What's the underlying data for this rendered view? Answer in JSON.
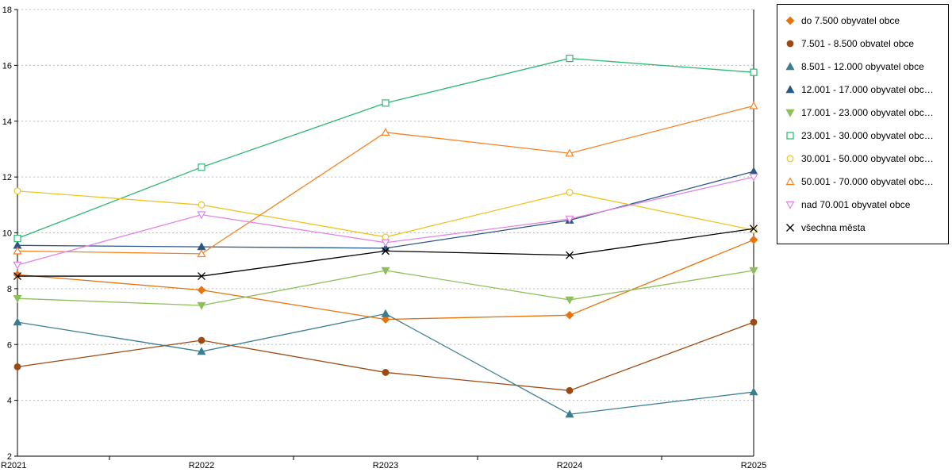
{
  "chart_data": {
    "type": "line",
    "title": "",
    "xlabel": "",
    "ylabel": "",
    "categories": [
      "R2021",
      "R2022",
      "R2023",
      "R2024",
      "R2025"
    ],
    "ylim": [
      2,
      18
    ],
    "ytick_step": 2,
    "yticks": [
      2,
      4,
      6,
      8,
      10,
      12,
      14,
      16,
      18
    ],
    "grid": "horizontal-dotted",
    "grid_color": "#bdbdbd",
    "axis_color": "#000000",
    "legend_position": "right",
    "series": [
      {
        "label": "do 7.500 obyvatel obce",
        "color": "#E8730C",
        "marker": "diamond",
        "filled": true,
        "values": [
          8.5,
          7.95,
          6.9,
          7.05,
          9.75
        ]
      },
      {
        "label": "7.501 - 8.500 obvatel obce",
        "color": "#9C4A12",
        "marker": "circle",
        "filled": true,
        "values": [
          5.2,
          6.15,
          5.0,
          4.35,
          6.8
        ]
      },
      {
        "label": "8.501 - 12.000 obyvatel obce",
        "color": "#3A7F8F",
        "marker": "triangle-up",
        "filled": true,
        "values": [
          6.8,
          5.75,
          7.1,
          3.5,
          4.3
        ]
      },
      {
        "label": "12.001 - 17.000 obyvatel obc…",
        "color": "#2A5783",
        "marker": "triangle-up",
        "filled": true,
        "values": [
          9.55,
          9.5,
          9.45,
          10.45,
          12.2
        ]
      },
      {
        "label": "17.001 - 23.000 obyvatel obc…",
        "color": "#8DC05A",
        "marker": "triangle-down",
        "filled": true,
        "values": [
          7.65,
          7.4,
          8.65,
          7.6,
          8.65
        ]
      },
      {
        "label": "23.001 - 30.000 obyvatel obc…",
        "color": "#2CB873",
        "marker": "square",
        "filled": false,
        "values": [
          9.8,
          12.35,
          14.65,
          16.25,
          15.75
        ]
      },
      {
        "label": "30.001 - 50.000 obyvatel obc…",
        "color": "#EDC520",
        "marker": "circle",
        "filled": false,
        "values": [
          11.5,
          11.0,
          9.85,
          11.45,
          10.1
        ]
      },
      {
        "label": "50.001 - 70.000 obyvatel obc…",
        "color": "#F58220",
        "marker": "triangle-up",
        "filled": false,
        "values": [
          9.35,
          9.25,
          13.6,
          12.85,
          14.55
        ]
      },
      {
        "label": "nad 70.001 obyvatel obce",
        "color": "#E583E5",
        "marker": "triangle-down",
        "filled": false,
        "values": [
          8.85,
          10.65,
          9.65,
          10.5,
          12.0
        ]
      },
      {
        "label": "všechna města",
        "color": "#000000",
        "marker": "x",
        "filled": false,
        "values": [
          8.45,
          8.45,
          9.35,
          9.2,
          10.15
        ]
      }
    ]
  }
}
